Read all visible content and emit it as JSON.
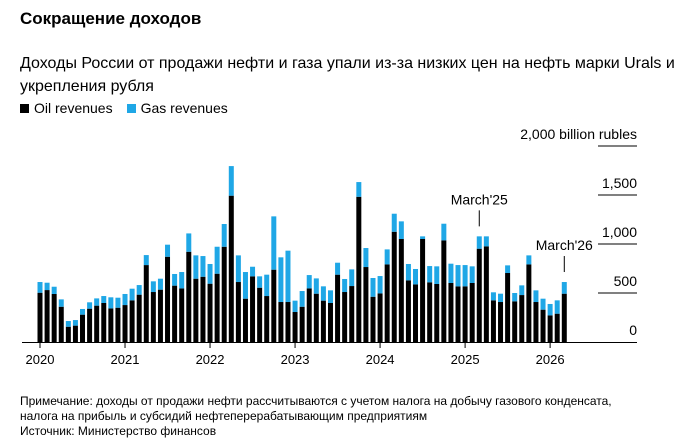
{
  "title": "Сокращение доходов",
  "subtitle": "Доходы России от продажи нефти и газа упали из-за низких цен на нефть марки Urals и укрепления рубля",
  "notes": [
    "Примечание: доходы от продажи нефти рассчитываются с учетом налога на добычу газового конденсата,",
    "налога на прибыль и субсидий нефтеперерабатывающим предприятиям",
    "Источник: Министерство финансов"
  ],
  "colors": {
    "oil": "#000000",
    "gas": "#1fa7e6"
  },
  "chart_data": {
    "type": "bar",
    "stacked": true,
    "frequency": "monthly",
    "start": "2020-01",
    "end": "2026-03",
    "x_tick_labels": [
      "2020",
      "2021",
      "2022",
      "2023",
      "2024",
      "2025",
      "2026"
    ],
    "y_tick_labels": [
      "0",
      "500",
      "1,000",
      "1,500",
      "2,000 billion rubles"
    ],
    "y_ticks": [
      0,
      500,
      1000,
      1500,
      2000
    ],
    "ylim": [
      0,
      2000
    ],
    "legend_position": "top-left",
    "annotations": [
      {
        "label": "March'25",
        "month": "2025-03"
      },
      {
        "label": "March'26",
        "month": "2026-03"
      }
    ],
    "series": [
      {
        "name": "Oil revenues",
        "values": [
          503,
          530,
          490,
          360,
          156,
          167,
          279,
          340,
          371,
          398,
          343,
          350,
          377,
          425,
          483,
          785,
          510,
          534,
          870,
          575,
          547,
          921,
          646,
          666,
          595,
          697,
          972,
          1493,
          612,
          442,
          670,
          554,
          469,
          738,
          408,
          408,
          306,
          360,
          547,
          493,
          422,
          398,
          687,
          510,
          571,
          1482,
          765,
          462,
          496,
          792,
          1125,
          1051,
          629,
          588,
          1051,
          609,
          592,
          1037,
          602,
          568,
          568,
          602,
          952,
          976,
          425,
          408,
          704,
          415,
          479,
          792,
          408,
          330,
          272,
          289,
          493
        ]
      },
      {
        "name": "Gas revenues",
        "values": [
          109,
          75,
          74,
          75,
          58,
          57,
          58,
          65,
          74,
          71,
          113,
          102,
          113,
          119,
          98,
          102,
          109,
          112,
          123,
          119,
          167,
          187,
          238,
          211,
          201,
          275,
          232,
          302,
          272,
          272,
          98,
          116,
          218,
          544,
          456,
          524,
          116,
          160,
          136,
          156,
          146,
          129,
          122,
          133,
          170,
          150,
          194,
          191,
          177,
          153,
          184,
          180,
          167,
          157,
          27,
          166,
          180,
          170,
          197,
          217,
          217,
          170,
          126,
          102,
          82,
          85,
          78,
          85,
          99,
          92,
          119,
          112,
          116,
          136,
          119
        ]
      }
    ]
  }
}
